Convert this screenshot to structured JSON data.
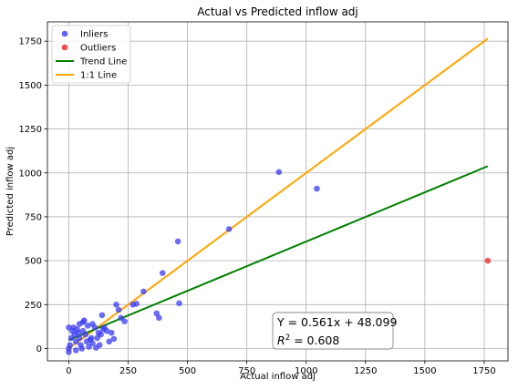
{
  "chart_data": {
    "type": "scatter",
    "title": "Actual vs Predicted inflow adj",
    "xlabel": "Actual inflow adj",
    "ylabel": "Predicted inflow adj",
    "xlim": [
      -90,
      1850
    ],
    "ylim": [
      -70,
      1860
    ],
    "grid": true,
    "legend_position": "top-left",
    "x_ticks": [
      0,
      250,
      500,
      750,
      1000,
      1250,
      1500,
      1750
    ],
    "y_ticks": [
      0,
      250,
      500,
      750,
      1000,
      1250,
      1500,
      1750
    ],
    "x_tick_labels": [
      "0",
      "250",
      "500",
      "750",
      "1000",
      "1250",
      "1500",
      "1750"
    ],
    "y_tick_labels": [
      "0",
      "250",
      "500",
      "750",
      "1000",
      "1250",
      "1500",
      "1750"
    ],
    "colors": {
      "inliers": "#3b3bf0",
      "outliers": "#ee2222",
      "trend": "#008000",
      "identity": "#ffa500"
    },
    "legend": [
      {
        "label": "Inliers",
        "kind": "marker",
        "color": "#3b3bf0"
      },
      {
        "label": "Outliers",
        "kind": "marker",
        "color": "#ee2222"
      },
      {
        "label": "Trend Line",
        "kind": "line",
        "color": "#008000"
      },
      {
        "label": "1:1 Line",
        "kind": "line",
        "color": "#ffa500"
      }
    ],
    "series": [
      {
        "name": "Inliers",
        "points": [
          [
            0,
            120
          ],
          [
            0,
            0
          ],
          [
            0,
            -20
          ],
          [
            5,
            20
          ],
          [
            10,
            60
          ],
          [
            15,
            100
          ],
          [
            20,
            120
          ],
          [
            25,
            80
          ],
          [
            30,
            40
          ],
          [
            30,
            -10
          ],
          [
            35,
            110
          ],
          [
            40,
            90
          ],
          [
            45,
            60
          ],
          [
            45,
            140
          ],
          [
            50,
            20
          ],
          [
            55,
            0
          ],
          [
            60,
            150
          ],
          [
            60,
            100
          ],
          [
            65,
            160
          ],
          [
            70,
            80
          ],
          [
            75,
            40
          ],
          [
            80,
            130
          ],
          [
            85,
            10
          ],
          [
            90,
            50
          ],
          [
            95,
            60
          ],
          [
            100,
            30
          ],
          [
            100,
            140
          ],
          [
            110,
            120
          ],
          [
            115,
            5
          ],
          [
            120,
            60
          ],
          [
            125,
            90
          ],
          [
            130,
            20
          ],
          [
            135,
            80
          ],
          [
            140,
            190
          ],
          [
            145,
            110
          ],
          [
            150,
            120
          ],
          [
            160,
            100
          ],
          [
            170,
            40
          ],
          [
            180,
            90
          ],
          [
            190,
            55
          ],
          [
            200,
            250
          ],
          [
            210,
            220
          ],
          [
            220,
            175
          ],
          [
            235,
            155
          ],
          [
            270,
            250
          ],
          [
            285,
            255
          ],
          [
            315,
            325
          ],
          [
            370,
            200
          ],
          [
            380,
            175
          ],
          [
            395,
            430
          ],
          [
            460,
            610
          ],
          [
            465,
            258
          ],
          [
            675,
            680
          ],
          [
            885,
            1005
          ],
          [
            1045,
            910
          ]
        ]
      },
      {
        "name": "Outliers",
        "points": [
          [
            1765,
            500
          ]
        ]
      }
    ],
    "trend_line": {
      "label": "Trend Line",
      "slope": 0.561,
      "intercept": 48.099,
      "x_range": [
        0,
        1765
      ]
    },
    "identity_line": {
      "label": "1:1 Line",
      "x_range": [
        0,
        1765
      ]
    },
    "annotation": {
      "equation": "Y = 0.561x + 48.099",
      "r2_prefix": "R",
      "r2_sup": "2",
      "r2_suffix": " = 0.608"
    }
  }
}
